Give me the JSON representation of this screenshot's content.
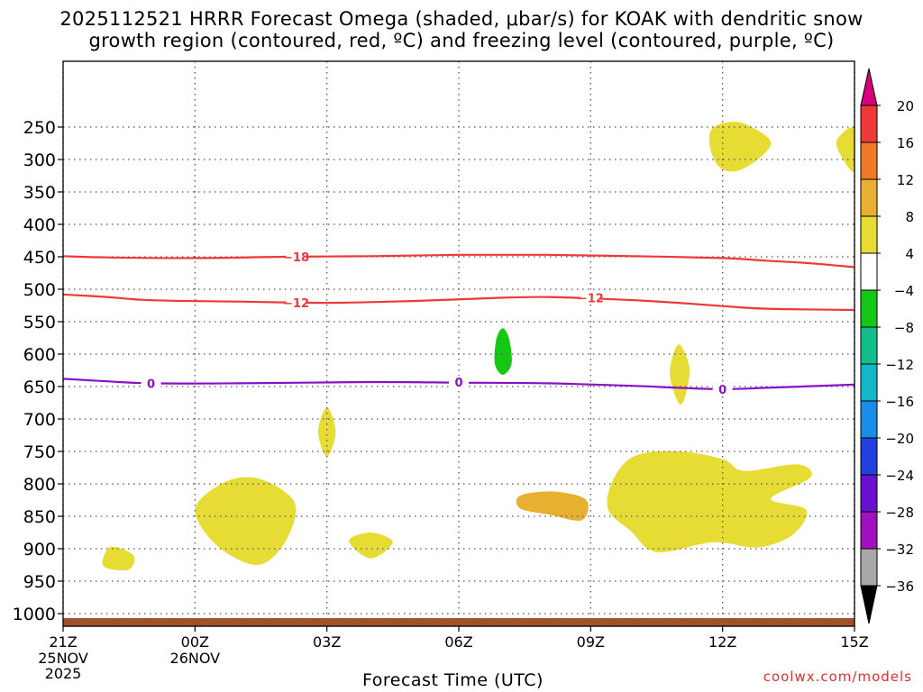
{
  "title": {
    "line1": "2025112521 HRRR Forecast Omega (shaded, μbar/s) for KOAK with dendritic snow",
    "line2": "growth region (contoured, red, ºC) and freezing level (contoured, purple, ºC)"
  },
  "watermark": "coolwx.com/models",
  "chart_data": {
    "type": "contour",
    "xlabel": "Forecast Time (UTC)",
    "ylabel": "Pressure (hPa)",
    "x_ticks": [
      {
        "hour": 0,
        "label": "21Z",
        "sub": [
          "25NOV",
          "2025"
        ]
      },
      {
        "hour": 3,
        "label": "00Z",
        "sub": [
          "26NOV"
        ]
      },
      {
        "hour": 6,
        "label": "03Z",
        "sub": []
      },
      {
        "hour": 9,
        "label": "06Z",
        "sub": []
      },
      {
        "hour": 12,
        "label": "09Z",
        "sub": []
      },
      {
        "hour": 15,
        "label": "12Z",
        "sub": []
      },
      {
        "hour": 18,
        "label": "15Z",
        "sub": []
      }
    ],
    "xlim": [
      0,
      18
    ],
    "y_ticks": [
      250,
      300,
      350,
      400,
      450,
      500,
      550,
      600,
      650,
      700,
      750,
      800,
      850,
      900,
      950,
      1000
    ],
    "ylim": [
      200,
      1025
    ],
    "colorbar": {
      "labels": [
        "20",
        "16",
        "12",
        "8",
        "4",
        "−4",
        "−8",
        "−12",
        "−16",
        "−20",
        "−24",
        "−28",
        "−32",
        "−36"
      ],
      "colors": [
        "#d6007a",
        "#f03838",
        "#f07a28",
        "#e8b030",
        "#e6dc33",
        "#ffffff",
        "#16c816",
        "#13bd8c",
        "#13b8c8",
        "#1a8de8",
        "#2040e0",
        "#6a10d0",
        "#a010c0",
        "#a8a8a8",
        "#000000"
      ]
    },
    "contours": [
      {
        "name": "-18C isotherm",
        "label": "−18",
        "color": "#f03838",
        "points": [
          [
            0,
            449
          ],
          [
            1,
            451
          ],
          [
            3,
            452
          ],
          [
            5,
            450
          ],
          [
            7,
            449
          ],
          [
            9,
            447
          ],
          [
            11,
            447
          ],
          [
            13,
            449
          ],
          [
            15,
            452
          ],
          [
            16,
            456
          ],
          [
            17,
            460
          ],
          [
            18,
            466
          ]
        ]
      },
      {
        "name": "-12C isotherm",
        "label": "−12",
        "color": "#f03838",
        "points": [
          [
            0,
            508
          ],
          [
            1,
            512
          ],
          [
            2,
            517
          ],
          [
            4,
            519
          ],
          [
            6,
            521
          ],
          [
            8,
            518
          ],
          [
            10,
            513
          ],
          [
            11,
            512
          ],
          [
            12,
            514
          ],
          [
            13,
            517
          ],
          [
            14,
            521
          ],
          [
            15,
            526
          ],
          [
            16,
            530
          ],
          [
            18,
            532
          ]
        ]
      },
      {
        "name": "0C freezing level",
        "label": "0",
        "color": "#8a10c8",
        "points": [
          [
            0,
            638
          ],
          [
            1,
            642
          ],
          [
            2,
            645
          ],
          [
            4,
            645
          ],
          [
            7,
            643
          ],
          [
            9,
            644
          ],
          [
            11,
            645
          ],
          [
            13,
            649
          ],
          [
            14,
            652
          ],
          [
            15,
            654
          ],
          [
            16,
            652
          ],
          [
            18,
            647
          ]
        ]
      }
    ],
    "contour_labels": [
      {
        "text": "−18",
        "hour": 5.3,
        "p": 450,
        "color": "#f03838"
      },
      {
        "text": "−12",
        "hour": 5.3,
        "p": 521,
        "color": "#f03838"
      },
      {
        "text": "−12",
        "hour": 12.0,
        "p": 513,
        "color": "#f03838"
      },
      {
        "text": "0",
        "hour": 2.0,
        "p": 645,
        "color": "#8a10c8"
      },
      {
        "text": "0",
        "hour": 9.0,
        "p": 643,
        "color": "#8a10c8"
      },
      {
        "text": "0",
        "hour": 15.0,
        "p": 654,
        "color": "#8a10c8"
      }
    ],
    "shaded_regions": [
      {
        "name": "omega 4-8 upper 12Z",
        "range": "4 to 8",
        "color": "#e6dc33",
        "points": [
          [
            14.8,
            250
          ],
          [
            15.3,
            242
          ],
          [
            15.8,
            255
          ],
          [
            16.1,
            275
          ],
          [
            15.8,
            300
          ],
          [
            15.3,
            318
          ],
          [
            14.9,
            310
          ],
          [
            14.7,
            275
          ]
        ]
      },
      {
        "name": "omega 4-8 upper 15Z",
        "range": "4 to 8",
        "color": "#e6dc33",
        "points": [
          [
            18,
            252
          ],
          [
            17.6,
            270
          ],
          [
            17.7,
            295
          ],
          [
            18,
            318
          ]
        ]
      },
      {
        "name": "omega -4 to -8 10Z",
        "range": "-4 to -8",
        "color": "#16c816",
        "points": [
          [
            10.0,
            560
          ],
          [
            10.15,
            578
          ],
          [
            10.2,
            615
          ],
          [
            10.0,
            632
          ],
          [
            9.82,
            615
          ],
          [
            9.85,
            578
          ]
        ]
      },
      {
        "name": "omega 4-8 14Z",
        "range": "4 to 8",
        "color": "#e6dc33",
        "points": [
          [
            14.0,
            585
          ],
          [
            14.25,
            625
          ],
          [
            14.05,
            678
          ],
          [
            13.8,
            630
          ]
        ]
      },
      {
        "name": "omega 4-8 03Z",
        "range": "4 to 8",
        "color": "#e6dc33",
        "points": [
          [
            6.0,
            682
          ],
          [
            6.2,
            720
          ],
          [
            6.0,
            758
          ],
          [
            5.8,
            720
          ]
        ]
      },
      {
        "name": "omega 4-8 00Z lower",
        "range": "4 to 8",
        "color": "#e6dc33",
        "points": [
          [
            3.0,
            840
          ],
          [
            3.6,
            800
          ],
          [
            4.3,
            790
          ],
          [
            5.0,
            810
          ],
          [
            5.3,
            840
          ],
          [
            5.0,
            895
          ],
          [
            4.4,
            925
          ],
          [
            3.5,
            895
          ]
        ]
      },
      {
        "name": "omega 4-8 04Z",
        "range": "4 to 8",
        "color": "#e6dc33",
        "points": [
          [
            6.5,
            888
          ],
          [
            7.0,
            875
          ],
          [
            7.5,
            890
          ],
          [
            7.0,
            915
          ]
        ]
      },
      {
        "name": "omega 4-8 22Z",
        "range": "4 to 8",
        "color": "#e6dc33",
        "points": [
          [
            0.9,
            918
          ],
          [
            1.1,
            897
          ],
          [
            1.6,
            910
          ],
          [
            1.5,
            932
          ],
          [
            1.0,
            930
          ]
        ]
      },
      {
        "name": "omega 4-8 09Z-13Z",
        "range": "4 to 8",
        "color": "#e6dc33",
        "points": [
          [
            12.5,
            795
          ],
          [
            13.0,
            757
          ],
          [
            14.0,
            750
          ],
          [
            15.0,
            762
          ],
          [
            15.5,
            780
          ],
          [
            16.7,
            770
          ],
          [
            17.0,
            790
          ],
          [
            16.1,
            823
          ],
          [
            16.9,
            840
          ],
          [
            16.6,
            878
          ],
          [
            15.8,
            898
          ],
          [
            14.8,
            890
          ],
          [
            13.5,
            905
          ],
          [
            12.9,
            872
          ],
          [
            12.4,
            840
          ]
        ]
      },
      {
        "name": "omega 8-12 10Z",
        "range": "8 to 12",
        "color": "#e8b030",
        "points": [
          [
            10.4,
            818
          ],
          [
            11.2,
            812
          ],
          [
            11.9,
            825
          ],
          [
            11.8,
            856
          ],
          [
            11.1,
            848
          ],
          [
            10.4,
            838
          ]
        ]
      },
      {
        "name": "omega 4-8 near surface 03Z",
        "range": "4 to 8",
        "color": "#e6dc33",
        "points": [
          [
            5.4,
            1015
          ],
          [
            6.0,
            1010
          ],
          [
            7.2,
            1008
          ],
          [
            8.0,
            1012
          ],
          [
            7.5,
            1017
          ],
          [
            5.4,
            1017
          ]
        ]
      },
      {
        "name": "omega 4-8 near surface 11Z",
        "range": "4 to 8",
        "color": "#e6dc33",
        "points": [
          [
            13.4,
            1014
          ],
          [
            14.5,
            1007
          ],
          [
            15.5,
            1010
          ],
          [
            15.2,
            1016
          ],
          [
            13.6,
            1018
          ]
        ]
      }
    ],
    "ground_color": "#a0522d"
  }
}
